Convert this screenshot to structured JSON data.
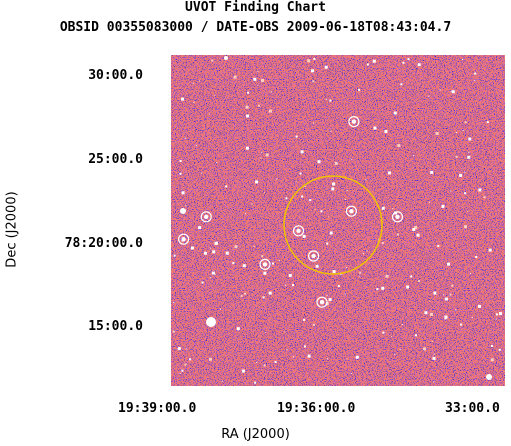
{
  "chart_data": {
    "type": "image",
    "title": "UVOT Finding Chart",
    "subtitle": "OBSID 00355083000 / DATE-OBS 2009-06-18T08:43:04.7",
    "xlabel": "RA (J2000)",
    "ylabel": "Dec (J2000)",
    "x_ticks": [
      "19:39:00.0",
      "19:36:00.0",
      "33:00.0"
    ],
    "y_ticks": [
      "30:00.0",
      "25:00.0",
      "78:20:00.0",
      "15:00.0"
    ],
    "colors": {
      "background_field": "#2a1fd0",
      "noise_high": "#e0302a",
      "source": "#ffffff",
      "target_circle": "#f2c200",
      "source_circle": "#ffffff"
    },
    "target_circle": {
      "label": "target region",
      "ra": "19:35:45",
      "dec": "78:20:40"
    },
    "sources": [
      {
        "ra": "19:35:22",
        "dec": "78:27:10"
      },
      {
        "ra": "19:38:18",
        "dec": "78:21:30"
      },
      {
        "ra": "19:38:45",
        "dec": "78:20:10"
      },
      {
        "ra": "19:36:28",
        "dec": "78:20:40"
      },
      {
        "ra": "19:36:10",
        "dec": "78:19:10"
      },
      {
        "ra": "19:35:25",
        "dec": "78:21:50"
      },
      {
        "ra": "19:34:30",
        "dec": "78:21:30"
      },
      {
        "ra": "19:37:08",
        "dec": "78:18:40"
      },
      {
        "ra": "19:36:00",
        "dec": "78:16:25"
      }
    ]
  }
}
